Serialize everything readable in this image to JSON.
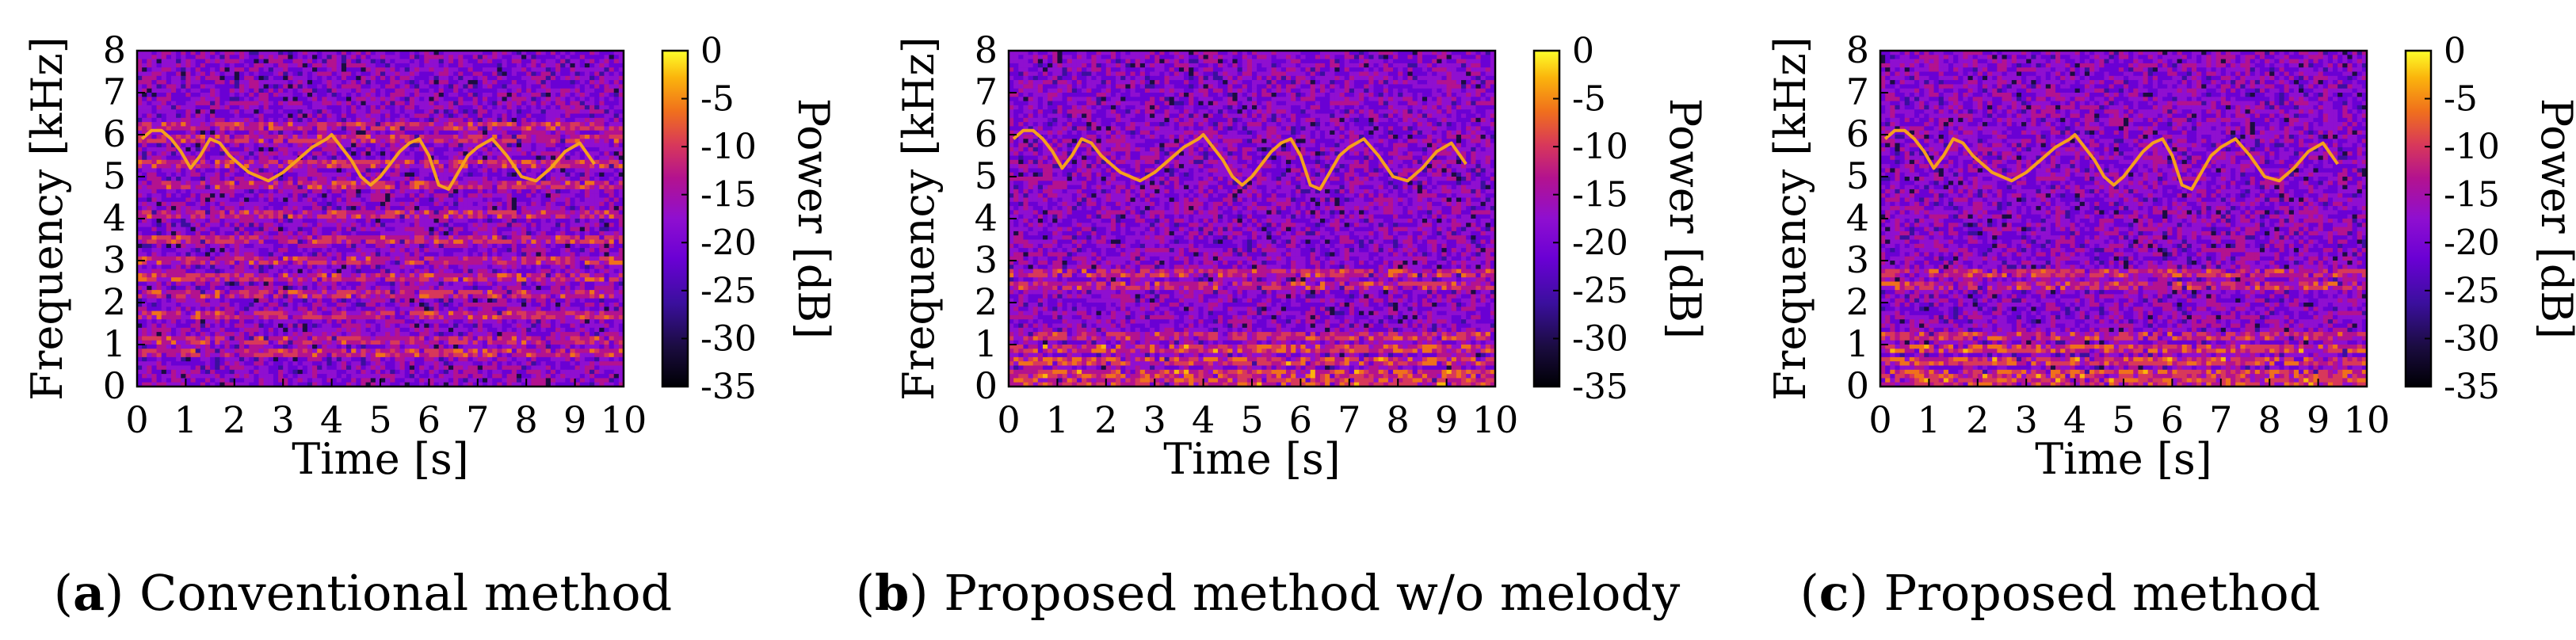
{
  "panels": [
    {
      "caption": {
        "prefix": "(",
        "label": "a",
        "suffix": ") Conventional method"
      },
      "chart_data": {
        "type": "heatmap",
        "xlabel": "Time [s]",
        "ylabel": "Frequency [kHz]",
        "colorbar_label": "Power [dB]",
        "xlim": [
          0,
          10
        ],
        "ylim": [
          0,
          8
        ],
        "clim": [
          -35,
          0
        ],
        "x_ticks": [
          "0",
          "1",
          "2",
          "3",
          "4",
          "5",
          "6",
          "7",
          "8",
          "9",
          "10"
        ],
        "y_ticks": [
          "0",
          "1",
          "2",
          "3",
          "4",
          "5",
          "6",
          "7",
          "8"
        ],
        "colorbar_ticks": [
          "0",
          "-5",
          "-10",
          "-15",
          "-20",
          "-25",
          "-30",
          "-35"
        ],
        "melody_contour": {
          "t": [
            0.1,
            0.3,
            0.5,
            0.7,
            0.9,
            1.1,
            1.3,
            1.5,
            1.7,
            1.9,
            2.1,
            2.3,
            2.5,
            2.7,
            3.0,
            3.3,
            3.6,
            3.9,
            4.0,
            4.2,
            4.4,
            4.6,
            4.8,
            5.0,
            5.2,
            5.4,
            5.6,
            5.8,
            6.0,
            6.2,
            6.4,
            6.6,
            6.8,
            7.0,
            7.3,
            7.6,
            7.9,
            8.2,
            8.5,
            8.8,
            9.1,
            9.4
          ],
          "f_khz": [
            5.9,
            6.1,
            6.1,
            5.9,
            5.6,
            5.2,
            5.5,
            5.9,
            5.8,
            5.5,
            5.3,
            5.1,
            5.0,
            4.9,
            5.1,
            5.4,
            5.7,
            5.9,
            6.0,
            5.7,
            5.4,
            5.0,
            4.8,
            5.0,
            5.3,
            5.6,
            5.8,
            5.9,
            5.5,
            4.8,
            4.7,
            5.1,
            5.5,
            5.7,
            5.9,
            5.5,
            5.0,
            4.9,
            5.2,
            5.6,
            5.8,
            5.3
          ]
        },
        "harmonic_bands_khz": [
          6.2,
          5.9,
          5.3,
          4.8,
          4.1,
          3.5,
          3.0,
          2.6,
          2.2,
          1.7,
          1.1,
          0.8
        ],
        "low_freq_bands_khz": []
      }
    },
    {
      "caption": {
        "prefix": "(",
        "label": "b",
        "suffix": ") Proposed method w/o melody"
      },
      "chart_data": {
        "type": "heatmap",
        "xlabel": "Time [s]",
        "ylabel": "Frequency [kHz]",
        "colorbar_label": "Power [dB]",
        "xlim": [
          0,
          10
        ],
        "ylim": [
          0,
          8
        ],
        "clim": [
          -35,
          0
        ],
        "x_ticks": [
          "0",
          "1",
          "2",
          "3",
          "4",
          "5",
          "6",
          "7",
          "8",
          "9",
          "10"
        ],
        "y_ticks": [
          "0",
          "1",
          "2",
          "3",
          "4",
          "5",
          "6",
          "7",
          "8"
        ],
        "colorbar_ticks": [
          "0",
          "-5",
          "-10",
          "-15",
          "-20",
          "-25",
          "-30",
          "-35"
        ],
        "melody_contour": {
          "t": [
            0.1,
            0.3,
            0.5,
            0.7,
            0.9,
            1.1,
            1.3,
            1.5,
            1.7,
            1.9,
            2.1,
            2.3,
            2.5,
            2.7,
            3.0,
            3.3,
            3.6,
            3.9,
            4.0,
            4.2,
            4.4,
            4.6,
            4.8,
            5.0,
            5.2,
            5.4,
            5.6,
            5.8,
            6.0,
            6.2,
            6.4,
            6.6,
            6.8,
            7.0,
            7.3,
            7.6,
            7.9,
            8.2,
            8.5,
            8.8,
            9.1,
            9.4
          ],
          "f_khz": [
            5.9,
            6.1,
            6.1,
            5.9,
            5.6,
            5.2,
            5.5,
            5.9,
            5.8,
            5.5,
            5.3,
            5.1,
            5.0,
            4.9,
            5.1,
            5.4,
            5.7,
            5.9,
            6.0,
            5.7,
            5.4,
            5.0,
            4.8,
            5.0,
            5.3,
            5.6,
            5.8,
            5.9,
            5.5,
            4.8,
            4.7,
            5.1,
            5.5,
            5.7,
            5.9,
            5.5,
            5.0,
            4.9,
            5.2,
            5.6,
            5.8,
            5.3
          ]
        },
        "harmonic_bands_khz": [
          2.7,
          2.4,
          1.2
        ],
        "low_freq_bands_khz": [
          0.9,
          0.6,
          0.3,
          0.1
        ]
      }
    },
    {
      "caption": {
        "prefix": "(",
        "label": "c",
        "suffix": ") Proposed method"
      },
      "chart_data": {
        "type": "heatmap",
        "xlabel": "Time [s]",
        "ylabel": "Frequency [kHz]",
        "colorbar_label": "Power [dB]",
        "xlim": [
          0,
          10
        ],
        "ylim": [
          0,
          8
        ],
        "clim": [
          -35,
          0
        ],
        "x_ticks": [
          "0",
          "1",
          "2",
          "3",
          "4",
          "5",
          "6",
          "7",
          "8",
          "9",
          "10"
        ],
        "y_ticks": [
          "0",
          "1",
          "2",
          "3",
          "4",
          "5",
          "6",
          "7",
          "8"
        ],
        "colorbar_ticks": [
          "0",
          "-5",
          "-10",
          "-15",
          "-20",
          "-25",
          "-30",
          "-35"
        ],
        "melody_contour": {
          "t": [
            0.1,
            0.3,
            0.5,
            0.7,
            0.9,
            1.1,
            1.3,
            1.5,
            1.7,
            1.9,
            2.1,
            2.3,
            2.5,
            2.7,
            3.0,
            3.3,
            3.6,
            3.9,
            4.0,
            4.2,
            4.4,
            4.6,
            4.8,
            5.0,
            5.2,
            5.4,
            5.6,
            5.8,
            6.0,
            6.2,
            6.4,
            6.6,
            6.8,
            7.0,
            7.3,
            7.6,
            7.9,
            8.2,
            8.5,
            8.8,
            9.1,
            9.4
          ],
          "f_khz": [
            5.9,
            6.1,
            6.1,
            5.9,
            5.6,
            5.2,
            5.5,
            5.9,
            5.8,
            5.5,
            5.3,
            5.1,
            5.0,
            4.9,
            5.1,
            5.4,
            5.7,
            5.9,
            6.0,
            5.7,
            5.4,
            5.0,
            4.8,
            5.0,
            5.3,
            5.6,
            5.8,
            5.9,
            5.5,
            4.8,
            4.7,
            5.1,
            5.5,
            5.7,
            5.9,
            5.5,
            5.0,
            4.9,
            5.2,
            5.6,
            5.8,
            5.3
          ]
        },
        "harmonic_bands_khz": [
          2.7,
          2.4,
          1.2
        ],
        "low_freq_bands_khz": [
          0.9,
          0.6,
          0.3,
          0.1
        ]
      }
    }
  ],
  "colors": {
    "colormap": [
      "#000004",
      "#1b0c41",
      "#3b0f9e",
      "#6a00d4",
      "#8f0fd0",
      "#b3128f",
      "#d8385a",
      "#f0701c",
      "#fbb40c",
      "#fcff2a"
    ],
    "axis": "#000000"
  }
}
